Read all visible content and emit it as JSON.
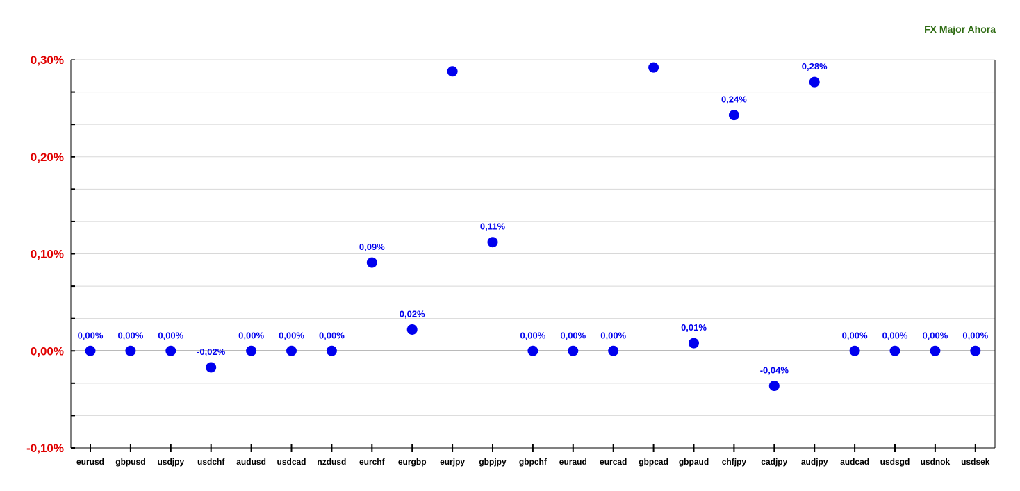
{
  "chart_data": {
    "type": "scatter",
    "title": "FX Major Ahora",
    "categories": [
      "eurusd",
      "gbpusd",
      "usdjpy",
      "usdchf",
      "audusd",
      "usdcad",
      "nzdusd",
      "eurchf",
      "eurgbp",
      "eurjpy",
      "gbpjpy",
      "gbpchf",
      "euraud",
      "eurcad",
      "gbpcad",
      "gbpaud",
      "chfjpy",
      "cadjpy",
      "audjpy",
      "audcad",
      "usdsgd",
      "usdnok",
      "usdsek"
    ],
    "values": [
      0.0,
      0.0,
      0.0,
      -0.017,
      0.0,
      0.0,
      0.0,
      0.091,
      0.022,
      0.288,
      0.112,
      0.0,
      0.0,
      0.0,
      0.292,
      0.008,
      0.243,
      -0.036,
      0.277,
      0.0,
      0.0,
      0.0,
      0.0
    ],
    "data_labels": [
      "0,00%",
      "0,00%",
      "0,00%",
      "-0,02%",
      "0,00%",
      "0,00%",
      "0,00%",
      "0,09%",
      "0,02%",
      "",
      "0,11%",
      "0,00%",
      "0,00%",
      "0,00%",
      "",
      "0,01%",
      "0,24%",
      "-0,04%",
      "0,28%",
      "0,00%",
      "0,00%",
      "0,00%",
      "0,00%"
    ],
    "ylim": [
      -0.1,
      0.3
    ],
    "yticks": [
      -0.1,
      0.0,
      0.1,
      0.2,
      0.3
    ],
    "ytick_labels": [
      "-0,10%",
      "0,00%",
      "0,10%",
      "0,20%",
      "0,30%"
    ],
    "xlabel": "",
    "ylabel": "",
    "grid": true,
    "legend": "none"
  },
  "colors": {
    "title": "#2e6b12",
    "ytick": "#e00000",
    "marker": "#0000ee",
    "data_label": "#0000ee",
    "grid": "#d8d8d8",
    "axis": "#000000"
  }
}
